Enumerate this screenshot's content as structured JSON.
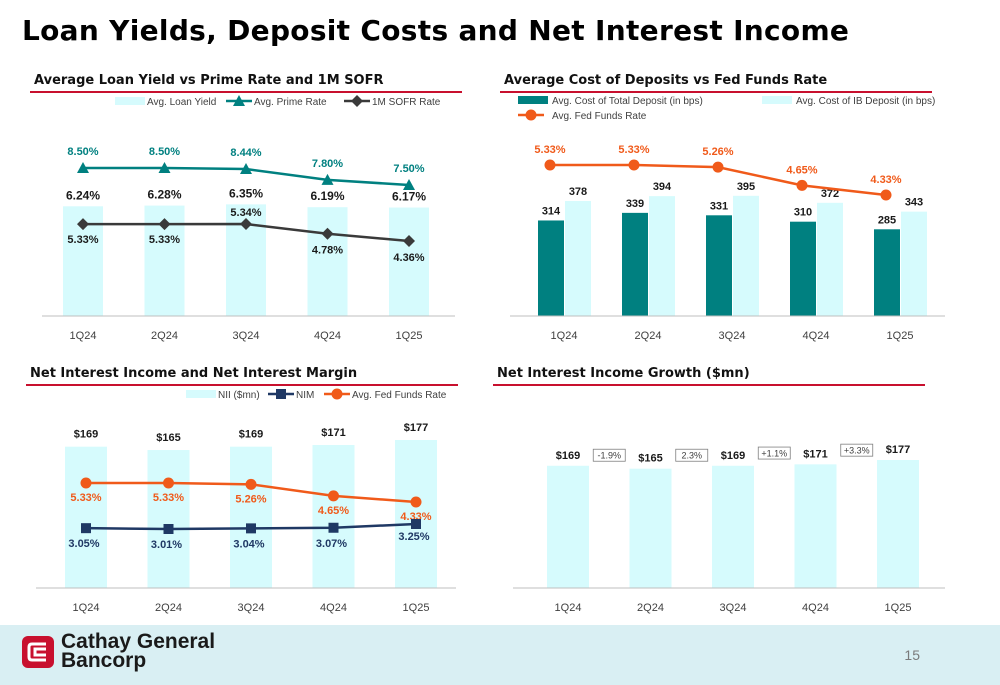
{
  "page_title": "Loan Yields, Deposit Costs and Net Interest Income",
  "page_number": "15",
  "brand": {
    "line1": "Cathay General",
    "line2": "Bancorp",
    "color": "#c8102e"
  },
  "colors": {
    "accent_rule": "#c8102e",
    "bar_light": "#d6fbfd",
    "teal": "#008080",
    "dark_gray": "#3a3a3a",
    "orange": "#f05a1a",
    "navy": "#1f3864",
    "footer_bg": "#d9eff3"
  },
  "chart_data": [
    {
      "type": "bar+line",
      "title": "Average Loan Yield vs Prime Rate and 1M SOFR",
      "legend_position": "top-right",
      "categories": [
        "1Q24",
        "2Q24",
        "3Q24",
        "4Q24",
        "1Q25"
      ],
      "ylim": [
        0,
        10
      ],
      "series": [
        {
          "name": "Avg. Loan Yield",
          "kind": "bar",
          "color": "#d6fbfd",
          "values": [
            6.24,
            6.28,
            6.35,
            6.19,
            6.17
          ],
          "labels": [
            "6.24%",
            "6.28%",
            "6.35%",
            "6.19%",
            "6.17%"
          ]
        },
        {
          "name": "Avg. Prime Rate",
          "kind": "line",
          "marker": "triangle",
          "color": "#008080",
          "values": [
            8.5,
            8.5,
            8.44,
            7.8,
            7.5
          ],
          "labels": [
            "8.50%",
            "8.50%",
            "8.44%",
            "7.80%",
            "7.50%"
          ]
        },
        {
          "name": "1M SOFR Rate",
          "kind": "line",
          "marker": "diamond",
          "color": "#3a3a3a",
          "values": [
            5.33,
            5.33,
            5.34,
            4.78,
            4.36
          ],
          "labels": [
            "5.33%",
            "5.33%",
            "5.34%",
            "4.78%",
            "4.36%"
          ]
        }
      ]
    },
    {
      "type": "bar+line",
      "title": "Average Cost of Deposits vs Fed Funds Rate",
      "legend_position": "top",
      "categories": [
        "1Q24",
        "2Q24",
        "3Q24",
        "4Q24",
        "1Q25"
      ],
      "ylim": [
        0,
        600
      ],
      "series": [
        {
          "name": "Avg. Cost of Total Deposit (in bps)",
          "kind": "bar",
          "color": "#008080",
          "values": [
            314,
            339,
            331,
            310,
            285
          ],
          "labels": [
            "314",
            "339",
            "331",
            "310",
            "285"
          ]
        },
        {
          "name": "Avg. Cost of IB Deposit (in bps)",
          "kind": "bar",
          "color": "#d6fbfd",
          "values": [
            378,
            394,
            395,
            372,
            343
          ],
          "labels": [
            "378",
            "394",
            "395",
            "372",
            "343"
          ]
        },
        {
          "name": "Avg. Fed Funds Rate",
          "kind": "line",
          "marker": "circle",
          "color": "#f05a1a",
          "values": [
            5.33,
            5.33,
            5.26,
            4.65,
            4.33
          ],
          "labels": [
            "5.33%",
            "5.33%",
            "5.26%",
            "4.65%",
            "4.33%"
          ]
        }
      ]
    },
    {
      "type": "bar+line",
      "title": "Net Interest Income and Net Interest Margin",
      "legend_position": "top-right",
      "categories": [
        "1Q24",
        "2Q24",
        "3Q24",
        "4Q24",
        "1Q25"
      ],
      "ylim": [
        0,
        200
      ],
      "series": [
        {
          "name": "NII ($mn)",
          "kind": "bar",
          "color": "#d6fbfd",
          "values": [
            169,
            165,
            169,
            171,
            177
          ],
          "labels": [
            "$169",
            "$165",
            "$169",
            "$171",
            "$177"
          ]
        },
        {
          "name": "NIM",
          "kind": "line",
          "marker": "square",
          "color": "#1f3864",
          "values": [
            3.05,
            3.01,
            3.04,
            3.07,
            3.25
          ],
          "labels": [
            "3.05%",
            "3.01%",
            "3.04%",
            "3.07%",
            "3.25%"
          ]
        },
        {
          "name": "Avg. Fed Funds Rate",
          "kind": "line",
          "marker": "circle",
          "color": "#f05a1a",
          "values": [
            5.33,
            5.33,
            5.26,
            4.65,
            4.33
          ],
          "labels": [
            "5.33%",
            "5.33%",
            "5.26%",
            "4.65%",
            "4.33%"
          ]
        }
      ]
    },
    {
      "type": "bar",
      "title": "Net Interest Income Growth ($mn)",
      "categories": [
        "1Q24",
        "2Q24",
        "3Q24",
        "4Q24",
        "1Q25"
      ],
      "ylim": [
        0,
        300
      ],
      "series": [
        {
          "kind": "bar",
          "color": "#d6fbfd",
          "values": [
            169,
            165,
            169,
            171,
            177
          ],
          "labels": [
            "$169",
            "$165",
            "$169",
            "$171",
            "$177"
          ]
        }
      ],
      "growth_labels": [
        "-1.9%",
        "2.3%",
        "+1.1%",
        "+3.3%"
      ]
    }
  ]
}
